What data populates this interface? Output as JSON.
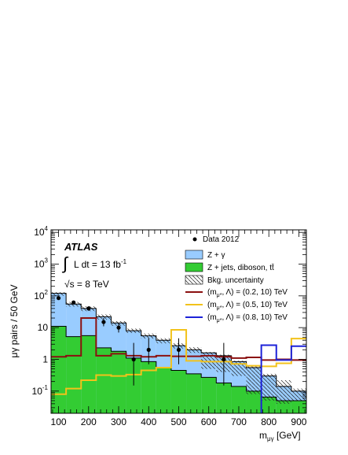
{
  "chart_data": {
    "type": "histogram",
    "experiment": "ATLAS",
    "luminosity": {
      "integral_prefix": "L dt = 13 fb",
      "exponent": "-1"
    },
    "energy": "s = 8 TeV",
    "xlabel": {
      "main": "m",
      "sub": "μγ",
      "unit": " [GeV]"
    },
    "ylabel": "μγ pairs / 50 GeV",
    "xlim": [
      75,
      925
    ],
    "ylim": [
      0.02,
      12000
    ],
    "y_scale": "log",
    "x_ticks": [
      100,
      200,
      300,
      400,
      500,
      600,
      700,
      800,
      900
    ],
    "y_ticks": [
      {
        "value": 0.1,
        "base": "10",
        "exp": "-1"
      },
      {
        "value": 1,
        "base": "1",
        "exp": ""
      },
      {
        "value": 10,
        "base": "10",
        "exp": ""
      },
      {
        "value": 100,
        "base": "10",
        "exp": "2"
      },
      {
        "value": 1000,
        "base": "10",
        "exp": "3"
      },
      {
        "value": 10000,
        "base": "10",
        "exp": "4"
      }
    ],
    "bin_edges": [
      75,
      125,
      175,
      225,
      275,
      325,
      375,
      425,
      475,
      525,
      575,
      625,
      675,
      725,
      775,
      825,
      875,
      925
    ],
    "background": {
      "z_gamma_plus_other": [
        120,
        55,
        40,
        22,
        14,
        8,
        5.5,
        4,
        2.7,
        2,
        1.6,
        1.3,
        0.85,
        0.55,
        0.3,
        0.14,
        0.1
      ],
      "z_jets_diboson_ttbar": [
        11,
        5.2,
        5.6,
        2.3,
        1.8,
        1.1,
        0.85,
        0.55,
        0.45,
        0.35,
        0.27,
        0.18,
        0.14,
        0.1,
        0.065,
        0.05,
        0.05
      ],
      "uncertainty_up": [
        130,
        64,
        47,
        26,
        16,
        9.3,
        6.5,
        4.6,
        3.2,
        2.4,
        1.7,
        1.4,
        0.9,
        0.6,
        0.35,
        0.22,
        0.12
      ],
      "uncertainty_down": [
        100,
        46,
        33,
        18,
        11.5,
        6.8,
        4.5,
        3.2,
        2.2,
        1.6,
        0.5,
        0.4,
        0.3,
        0.08,
        0.05,
        0.04,
        0.05
      ]
    },
    "data_points": [
      {
        "x": 100,
        "y": 85,
        "err_low": 9,
        "err_high": 10
      },
      {
        "x": 150,
        "y": 62,
        "err_low": 8,
        "err_high": 8
      },
      {
        "x": 200,
        "y": 40,
        "err_low": 6,
        "err_high": 7
      },
      {
        "x": 250,
        "y": 15,
        "err_low": 4,
        "err_high": 5
      },
      {
        "x": 300,
        "y": 10,
        "err_low": 3,
        "err_high": 4
      },
      {
        "x": 350,
        "y": 1,
        "err_low": 0.85,
        "err_high": 2.3
      },
      {
        "x": 400,
        "y": 2,
        "err_low": 1.3,
        "err_high": 2.6
      },
      {
        "x": 500,
        "y": 2,
        "err_low": 1.3,
        "err_high": 2.6
      },
      {
        "x": 650,
        "y": 1,
        "err_low": 0.85,
        "err_high": 2.3
      }
    ],
    "signals": [
      {
        "params": "(0.2, 10) TeV",
        "color": "#8b1010",
        "values": [
          1.2,
          1.3,
          20,
          1.3,
          1.5,
          1.3,
          1.2,
          1.3,
          1.25,
          1.25,
          1.3,
          1.2,
          1.1,
          1.15,
          0.95,
          1.0,
          0.95
        ]
      },
      {
        "params": "(0.5, 10) TeV",
        "color": "#f2c21b",
        "values": [
          0.08,
          0.12,
          0.22,
          0.32,
          0.3,
          0.33,
          0.45,
          0.55,
          8.5,
          0.9,
          0.85,
          0.85,
          0.72,
          0.63,
          0.6,
          0.75,
          4.5
        ]
      },
      {
        "params": "(0.8, 10) TeV",
        "color": "#1d22d8",
        "values": [
          0.018,
          0.018,
          0.018,
          0.018,
          0.018,
          0.018,
          0.018,
          0.018,
          0.018,
          0.018,
          0.018,
          0.018,
          0.018,
          0.018,
          2.8,
          0.95,
          2.6
        ]
      }
    ],
    "legend": {
      "position": "top-right",
      "data_label": "Data 2012",
      "z_gamma_label": "Z + γ",
      "z_jets_label": "Z + jets, diboson, tt̄",
      "uncertainty_label": "Bkg. uncertainty",
      "signal_label_prefix": "(m",
      "signal_label_sub": "μ*",
      "signal_label_mid": ", Λ) = "
    },
    "colors": {
      "z_gamma": "#99ccff",
      "z_jets": "#33cc33",
      "data": "#000000"
    }
  }
}
